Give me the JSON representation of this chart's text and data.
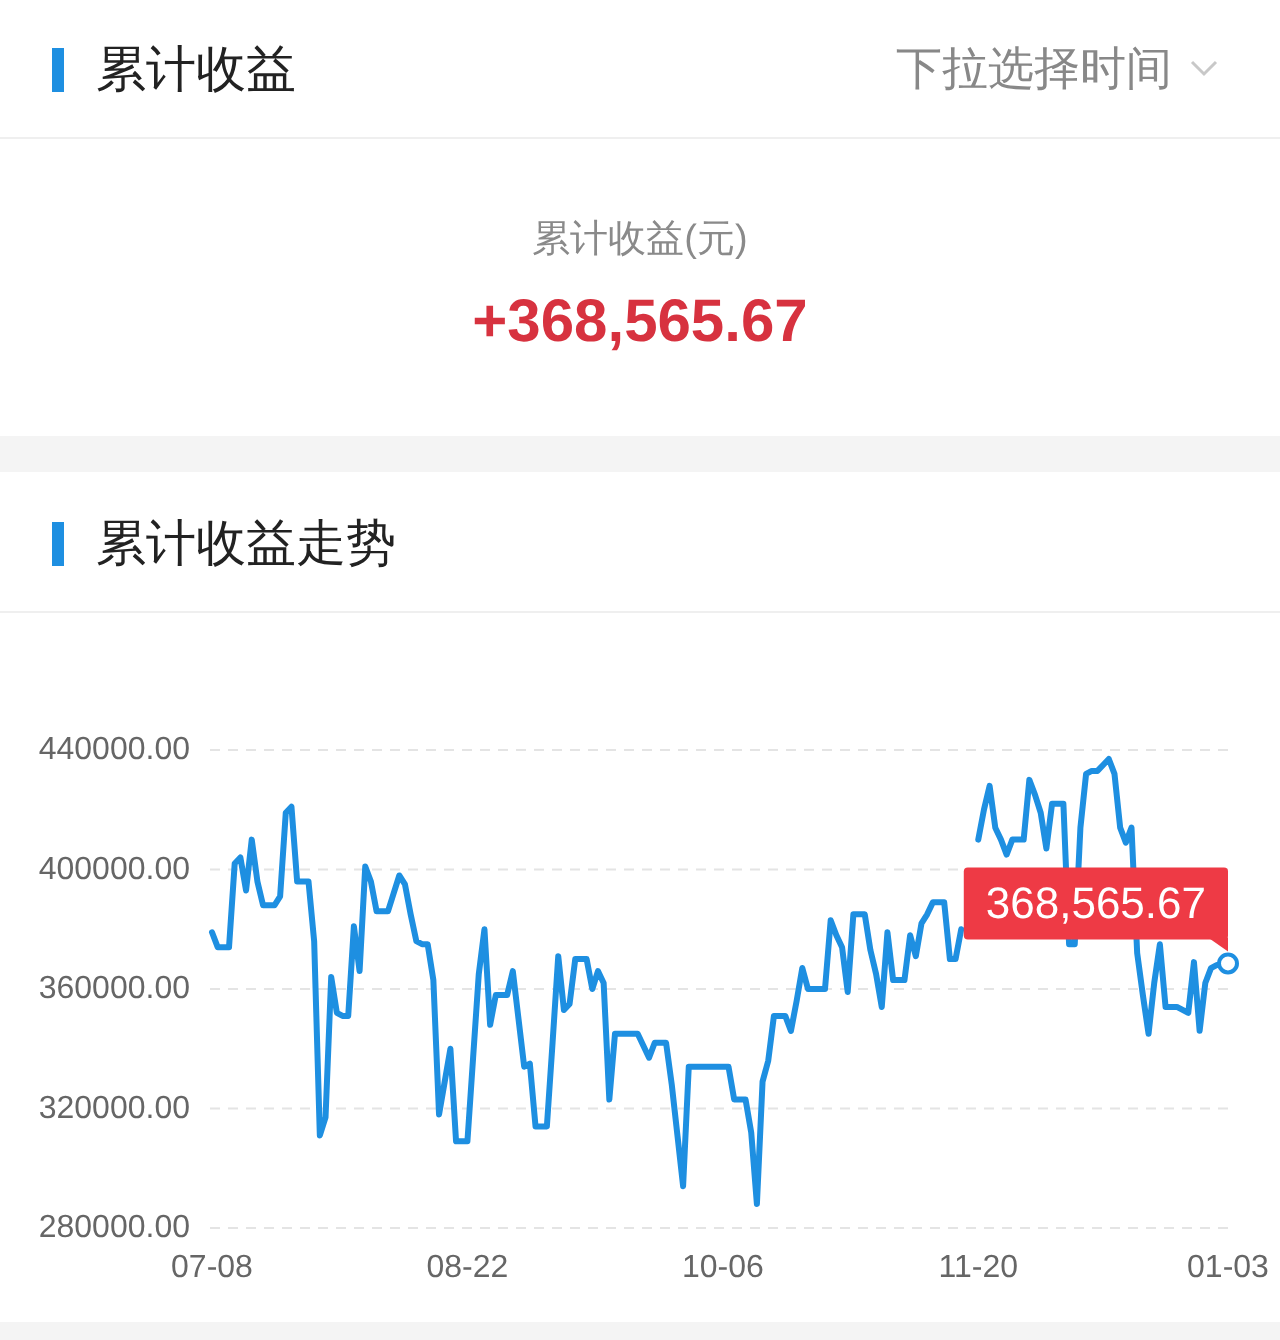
{
  "chart_data": [
    {
      "type": "other",
      "title": "累计收益",
      "annotations": [
        "下拉选择时间",
        "累计收益(元)",
        "+368,565.67"
      ]
    },
    {
      "type": "line",
      "title": "累计收益走势",
      "color": "#1e8fe1",
      "grid": "y",
      "ylim": [
        280000,
        440000
      ],
      "yticks": [
        {
          "value": 280000,
          "label": "280000.00"
        },
        {
          "value": 320000,
          "label": "320000.00"
        },
        {
          "value": 360000,
          "label": "360000.00"
        },
        {
          "value": 400000,
          "label": "400000.00"
        },
        {
          "value": 440000,
          "label": "440000.00"
        }
      ],
      "categories": [
        "07-08",
        null,
        null,
        null,
        null,
        null,
        null,
        null,
        null,
        null,
        null,
        null,
        null,
        null,
        null,
        null,
        null,
        null,
        null,
        null,
        null,
        null,
        null,
        null,
        null,
        null,
        null,
        null,
        null,
        null,
        null,
        null,
        null,
        null,
        null,
        null,
        null,
        null,
        null,
        null,
        null,
        null,
        null,
        null,
        null,
        "08-22",
        null,
        null,
        null,
        null,
        null,
        null,
        null,
        null,
        null,
        null,
        null,
        null,
        null,
        null,
        null,
        null,
        null,
        null,
        null,
        null,
        null,
        null,
        null,
        null,
        null,
        null,
        null,
        null,
        null,
        null,
        null,
        null,
        null,
        null,
        null,
        null,
        null,
        null,
        null,
        null,
        null,
        null,
        null,
        null,
        "10-06",
        null,
        null,
        null,
        null,
        null,
        null,
        null,
        null,
        null,
        null,
        null,
        null,
        null,
        null,
        null,
        null,
        null,
        null,
        null,
        null,
        null,
        null,
        null,
        null,
        null,
        null,
        null,
        null,
        null,
        null,
        null,
        null,
        null,
        null,
        null,
        null,
        null,
        null,
        null,
        null,
        null,
        null,
        null,
        null,
        "11-20",
        null,
        null,
        null,
        null,
        null,
        null,
        null,
        null,
        null,
        null,
        null,
        null,
        null,
        null,
        null,
        null,
        null,
        null,
        null,
        null,
        null,
        null,
        null,
        null,
        null,
        null,
        null,
        null,
        null,
        null,
        null,
        null,
        null,
        null,
        null,
        null,
        null,
        null,
        null,
        null,
        null,
        null,
        null,
        "01-03"
      ],
      "values": [
        379000,
        374000,
        374000,
        374000,
        402000,
        404000,
        393000,
        410000,
        396000,
        388000,
        388000,
        388000,
        391000,
        419000,
        421000,
        396000,
        396000,
        396000,
        376000,
        311000,
        317000,
        364000,
        352000,
        351000,
        351000,
        381000,
        366000,
        401000,
        396000,
        386000,
        386000,
        386000,
        392000,
        398000,
        395000,
        385000,
        376000,
        375000,
        375000,
        363000,
        318000,
        329000,
        340000,
        309000,
        309000,
        309000,
        337000,
        365000,
        380000,
        348000,
        358000,
        358000,
        358000,
        366000,
        350000,
        334000,
        335000,
        314000,
        314000,
        314000,
        342000,
        371000,
        353000,
        355000,
        370000,
        370000,
        370000,
        360000,
        366000,
        362000,
        323000,
        345000,
        345000,
        345000,
        345000,
        345000,
        341000,
        337000,
        342000,
        342000,
        342000,
        328000,
        311000,
        294000,
        334000,
        334000,
        334000,
        334000,
        334000,
        334000,
        334000,
        334000,
        323000,
        323000,
        323000,
        312000,
        288000,
        329000,
        336000,
        351000,
        351000,
        351000,
        346000,
        356000,
        367000,
        360000,
        360000,
        360000,
        360000,
        383000,
        378000,
        374000,
        359000,
        385000,
        385000,
        385000,
        373000,
        365000,
        354000,
        379000,
        363000,
        363000,
        363000,
        378000,
        371000,
        382000,
        385000,
        389000,
        389000,
        389000,
        370000,
        370000,
        380000,
        null,
        null,
        410000,
        420000,
        428000,
        414000,
        410000,
        405000,
        410000,
        410000,
        410000,
        430000,
        425000,
        419000,
        407000,
        422000,
        422000,
        422000,
        375000,
        375000,
        414000,
        432000,
        433000,
        433000,
        435000,
        437000,
        432000,
        414000,
        409000,
        414000,
        372000,
        358000,
        345000,
        362000,
        375000,
        354000,
        354000,
        354000,
        353000,
        352000,
        369000,
        346000,
        362000,
        367000,
        368000,
        368000,
        368565.67
      ],
      "value_labels": [
        null,
        null,
        null,
        null,
        null,
        null,
        null,
        null,
        null,
        null,
        null,
        null,
        null,
        null,
        null,
        null,
        null,
        null,
        null,
        null,
        null,
        null,
        null,
        null,
        null,
        null,
        null,
        null,
        null,
        null,
        null,
        null,
        null,
        null,
        null,
        null,
        null,
        null,
        null,
        null,
        null,
        null,
        null,
        null,
        null,
        null,
        null,
        null,
        null,
        null,
        null,
        null,
        null,
        null,
        null,
        null,
        null,
        null,
        null,
        null,
        null,
        null,
        null,
        null,
        null,
        null,
        null,
        null,
        null,
        null,
        null,
        null,
        null,
        null,
        null,
        null,
        null,
        null,
        null,
        null,
        null,
        null,
        null,
        null,
        null,
        null,
        null,
        null,
        null,
        null,
        null,
        null,
        null,
        null,
        null,
        null,
        null,
        null,
        null,
        null,
        null,
        null,
        null,
        null,
        null,
        null,
        null,
        null,
        null,
        null,
        null,
        null,
        null,
        null,
        null,
        null,
        null,
        null,
        null,
        null,
        null,
        null,
        null,
        null,
        null,
        null,
        null,
        null,
        null,
        null,
        null,
        null,
        null,
        null,
        null,
        null,
        null,
        null,
        null,
        null,
        null,
        null,
        null,
        null,
        null,
        null,
        null,
        null,
        null,
        null,
        null,
        null,
        null,
        null,
        null,
        null,
        null,
        null,
        null,
        null,
        null,
        null,
        null,
        null,
        null,
        null,
        null,
        null,
        null,
        null,
        null,
        null,
        null,
        null,
        null,
        null,
        null,
        null,
        null,
        "368,565.67"
      ]
    }
  ]
}
